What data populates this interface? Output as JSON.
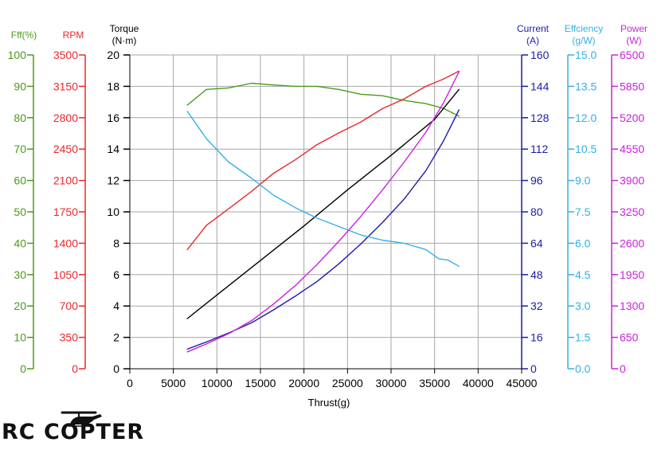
{
  "chart_data": {
    "type": "line",
    "xlabel": "Thrust(g)",
    "x_ticks": [
      "0",
      "5000",
      "10000",
      "15000",
      "20000",
      "25000",
      "30000",
      "35000",
      "40000",
      "45000"
    ],
    "xlim": [
      0,
      45000
    ],
    "grid": "horizontal",
    "axes": [
      {
        "key": "eff",
        "title": "Fff(%)",
        "unit": "",
        "color": "#4a9a1c",
        "min": 0,
        "max": 100,
        "ticks": [
          "0",
          "10",
          "20",
          "30",
          "40",
          "50",
          "60",
          "70",
          "80",
          "90",
          "100"
        ]
      },
      {
        "key": "rpm",
        "title": "RPM",
        "unit": "",
        "color": "#e8282c",
        "min": 0,
        "max": 3500,
        "ticks": [
          "0",
          "350",
          "700",
          "1050",
          "1400",
          "1750",
          "2100",
          "2450",
          "2800",
          "3150",
          "3500"
        ]
      },
      {
        "key": "torque",
        "title": "Torque",
        "unit": "(N·m)",
        "color": "#000000",
        "min": 0,
        "max": 20,
        "ticks": [
          "0",
          "2",
          "4",
          "6",
          "8",
          "10",
          "12",
          "14",
          "16",
          "18",
          "20"
        ]
      },
      {
        "key": "current",
        "title": "Current",
        "unit": "(A)",
        "color": "#1c1ca8",
        "min": 0,
        "max": 160,
        "ticks": [
          "0",
          "16",
          "32",
          "48",
          "64",
          "80",
          "96",
          "112",
          "128",
          "144",
          "160"
        ]
      },
      {
        "key": "gw",
        "title": "Effciency",
        "unit": "(g/W)",
        "color": "#33b0e6",
        "min": 0,
        "max": 15,
        "ticks": [
          "0.0",
          "1.5",
          "3.0",
          "4.5",
          "6.0",
          "7.5",
          "9.0",
          "10.5",
          "12.0",
          "13.5",
          "15.0"
        ]
      },
      {
        "key": "power",
        "title": "Power",
        "unit": "(W)",
        "color": "#cc22dd",
        "min": 0,
        "max": 6500,
        "ticks": [
          "0",
          "650",
          "1300",
          "1950",
          "2600",
          "3250",
          "3900",
          "4550",
          "5200",
          "5850",
          "6500"
        ]
      }
    ],
    "series": [
      {
        "axis": "eff",
        "color": "#4a9a1c",
        "x": [
          6600,
          8800,
          11300,
          14000,
          16200,
          19000,
          21500,
          24000,
          26500,
          29000,
          31500,
          34000,
          36000,
          37800
        ],
        "y": [
          84.0,
          89.0,
          89.5,
          91.0,
          90.5,
          90.0,
          90.0,
          89.0,
          87.5,
          87.0,
          85.5,
          84.5,
          83.0,
          80.5
        ]
      },
      {
        "axis": "rpm",
        "color": "#e8282c",
        "x": [
          6600,
          8800,
          11300,
          14000,
          16500,
          19000,
          21500,
          24000,
          26500,
          29000,
          31500,
          34000,
          36000,
          37800
        ],
        "y": [
          1330,
          1600,
          1780,
          1980,
          2180,
          2330,
          2500,
          2630,
          2750,
          2900,
          3010,
          3150,
          3230,
          3320
        ]
      },
      {
        "axis": "torque",
        "color": "#000000",
        "x": [
          6600,
          10000,
          15000,
          20000,
          25000,
          30000,
          35000,
          37800
        ],
        "y": [
          3.2,
          4.7,
          6.9,
          9.1,
          11.4,
          13.6,
          15.9,
          17.8
        ]
      },
      {
        "axis": "current",
        "color": "#1c1ca8",
        "x": [
          6600,
          9000,
          11500,
          14000,
          16500,
          19000,
          21500,
          24000,
          26500,
          29000,
          31500,
          34000,
          36000,
          37800
        ],
        "y": [
          10,
          14,
          18.5,
          23.5,
          30,
          37,
          44.5,
          53.5,
          63.5,
          74.5,
          86.5,
          101,
          116,
          132
        ]
      },
      {
        "axis": "gw",
        "color": "#33b0e6",
        "x": [
          6600,
          8800,
          11300,
          14000,
          16500,
          19000,
          21500,
          24000,
          26500,
          29000,
          31500,
          34000,
          35500,
          36500,
          37800
        ],
        "y": [
          12.3,
          11.0,
          9.9,
          9.1,
          8.3,
          7.7,
          7.2,
          6.8,
          6.4,
          6.15,
          6.0,
          5.7,
          5.25,
          5.2,
          4.9
        ]
      },
      {
        "axis": "power",
        "color": "#cc22dd",
        "x": [
          6600,
          9000,
          11500,
          14000,
          16500,
          19000,
          21500,
          24000,
          26500,
          29000,
          31500,
          34000,
          36000,
          37800
        ],
        "y": [
          350,
          530,
          740,
          1000,
          1340,
          1720,
          2160,
          2640,
          3150,
          3700,
          4280,
          4900,
          5500,
          6150
        ]
      }
    ]
  },
  "logo": {
    "text": "RC COPTER"
  }
}
